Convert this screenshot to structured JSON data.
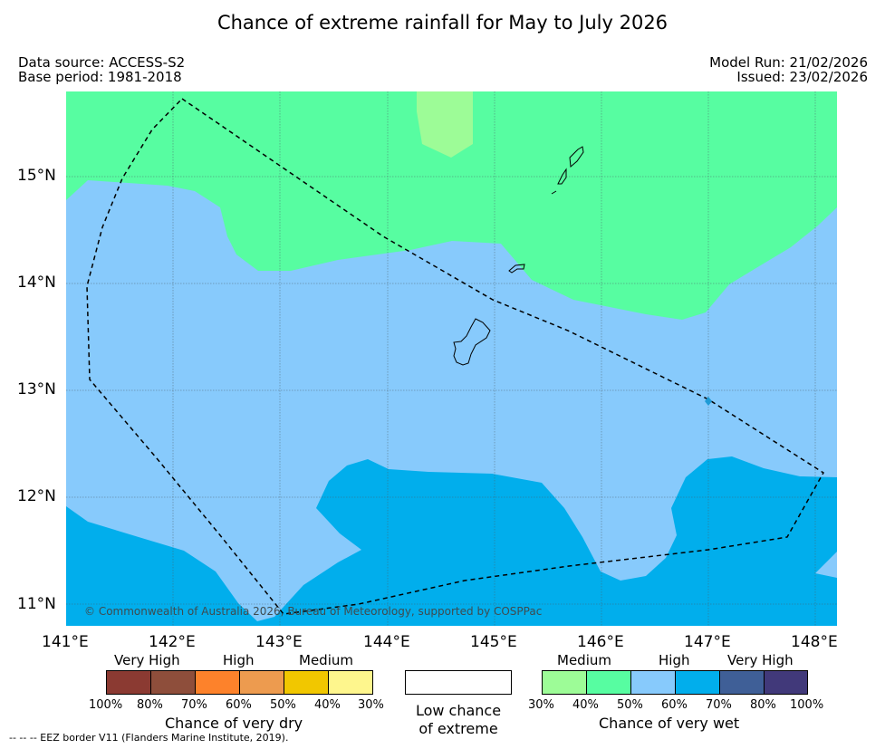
{
  "title": "Chance of extreme rainfall for May to July 2026",
  "meta": {
    "data_source": "Data source: ACCESS-S2",
    "base_period": "Base period: 1981-2018",
    "model_run": "Model Run: 21/02/2026",
    "issued": "Issued: 23/02/2026"
  },
  "map": {
    "copyright": "© Commonwealth of Australia 2026, Bureau of Meteorology, supported by COSPPac",
    "lon_ticks": [
      "141°E",
      "142°E",
      "143°E",
      "144°E",
      "145°E",
      "146°E",
      "147°E",
      "148°E"
    ],
    "lat_ticks": [
      "15°N",
      "14°N",
      "13°N",
      "12°N",
      "11°N"
    ],
    "lon_range": [
      141.0,
      148.2
    ],
    "lat_range": [
      10.8,
      15.8
    ],
    "colors": {
      "wet_30_40": "#9dfc97",
      "wet_40_50": "#57fda1",
      "wet_50_60": "#87cafc",
      "wet_60_70": "#01aeec",
      "eez": "#000000",
      "marker": "#1e9bd6"
    }
  },
  "legend": {
    "dry": {
      "title": "Chance of very dry",
      "categories": [
        "Very High",
        "High",
        "Medium"
      ],
      "ticks": [
        "100%",
        "80%",
        "70%",
        "60%",
        "50%",
        "40%",
        "30%"
      ],
      "colors": [
        "#8b3a32",
        "#8e4e3b",
        "#fd822b",
        "#ed9b4f",
        "#f1c700",
        "#fef68d"
      ]
    },
    "neutral": {
      "line1": "Low chance",
      "line2": "of extreme"
    },
    "wet": {
      "title": "Chance of very wet",
      "categories": [
        "Medium",
        "High",
        "Very High"
      ],
      "ticks": [
        "30%",
        "40%",
        "50%",
        "60%",
        "70%",
        "80%",
        "100%"
      ],
      "colors": [
        "#9dfc97",
        "#57fda1",
        "#87cafc",
        "#01aeec",
        "#3f5f97",
        "#41397a"
      ]
    }
  },
  "footnote": "--  --  -- EEZ border V11 (Flanders Marine Institute, 2019)."
}
